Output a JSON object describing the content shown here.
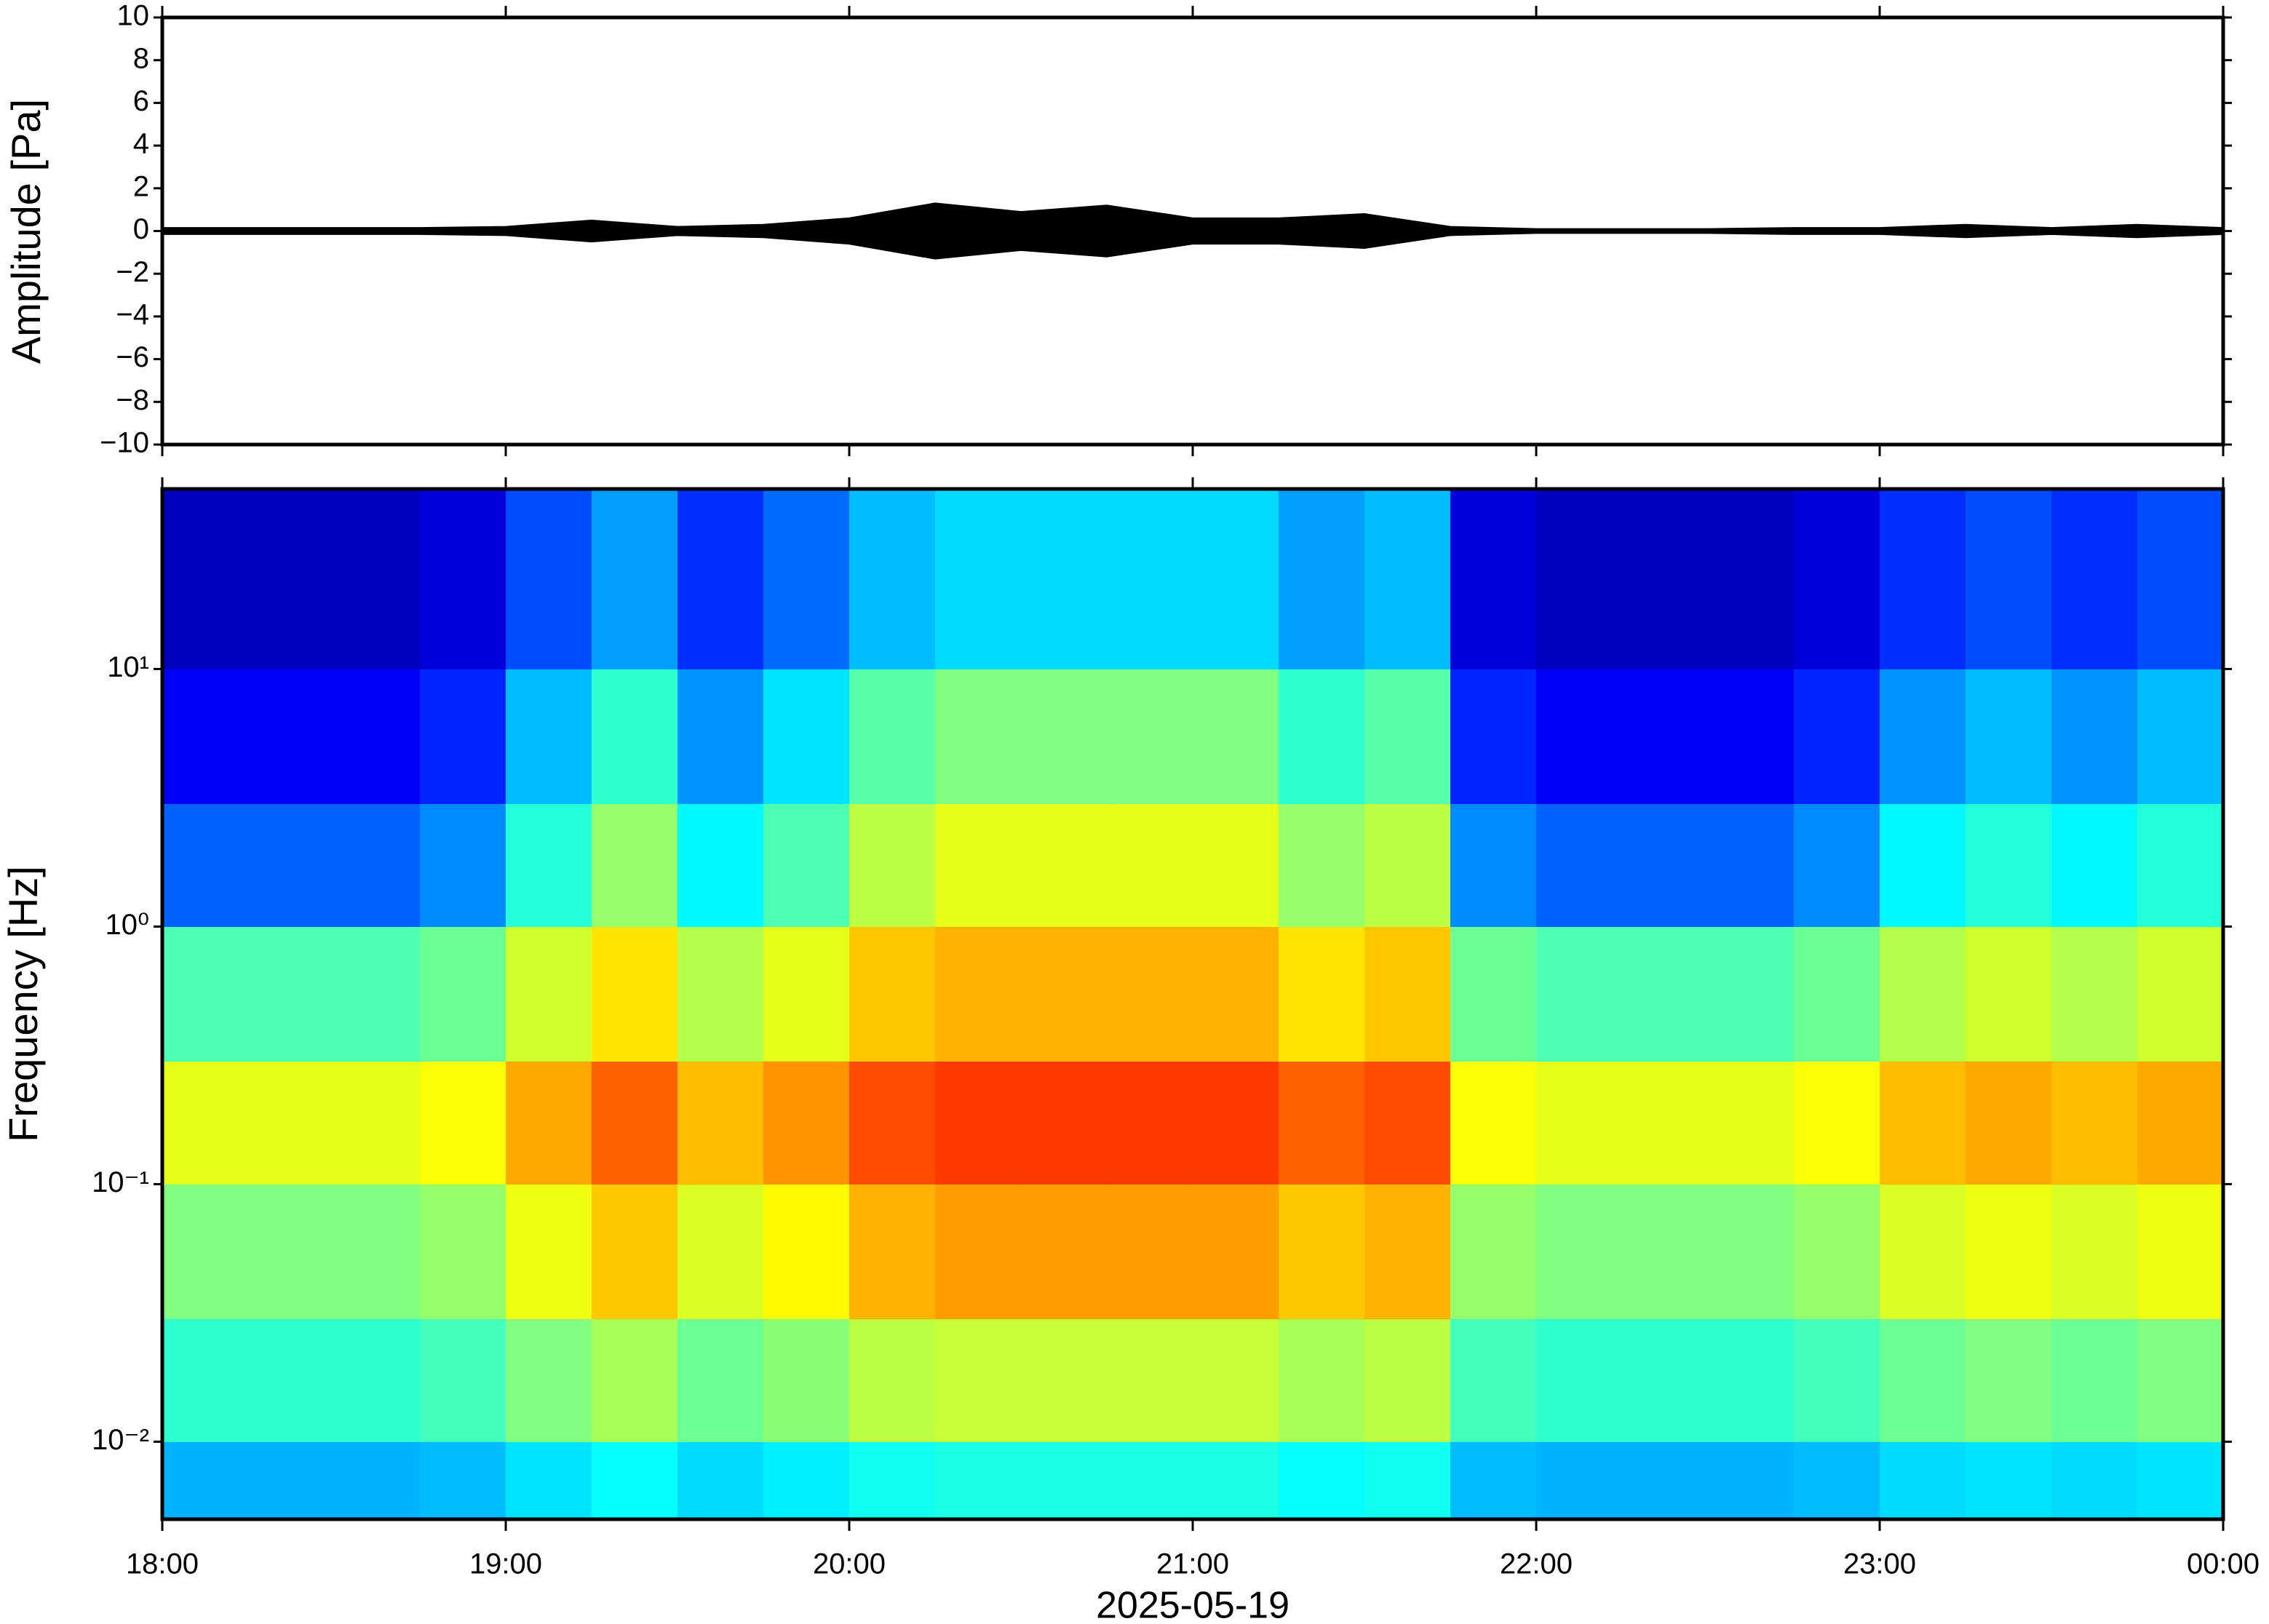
{
  "chart_data": [
    {
      "type": "waveform",
      "ylabel": "Amplitude [Pa]",
      "x": [
        18,
        18.25,
        18.5,
        18.75,
        19,
        19.25,
        19.5,
        19.75,
        20,
        20.25,
        20.5,
        20.75,
        21,
        21.25,
        21.5,
        21.75,
        22,
        22.25,
        22.5,
        22.75,
        23,
        23.25,
        23.5,
        23.75,
        24
      ],
      "values": [
        0.15,
        0.15,
        0.15,
        0.15,
        0.2,
        0.5,
        0.2,
        0.3,
        0.6,
        1.3,
        0.9,
        1.2,
        0.6,
        0.6,
        0.8,
        0.2,
        0.1,
        0.1,
        0.1,
        0.15,
        0.15,
        0.3,
        0.15,
        0.3,
        0.15
      ],
      "color": "#000000",
      "xlim": [
        18,
        24
      ],
      "ylim": [
        -10,
        10
      ],
      "yticks": [
        {
          "value": -10,
          "label": "−10"
        },
        {
          "value": -8,
          "label": "−8"
        },
        {
          "value": -6,
          "label": "−6"
        },
        {
          "value": -4,
          "label": "−4"
        },
        {
          "value": -2,
          "label": "−2"
        },
        0,
        2,
        4,
        6,
        8,
        10
      ]
    },
    {
      "type": "spectrogram",
      "ylabel": "Frequency [Hz]",
      "xlabel": "2025-05-19",
      "colormap": "jet",
      "log_y": true,
      "xlim": [
        18,
        24
      ],
      "xticks": [
        {
          "value": 18,
          "label": "18:00"
        },
        {
          "value": 19,
          "label": "19:00"
        },
        {
          "value": 20,
          "label": "20:00"
        },
        {
          "value": 21,
          "label": "21:00"
        },
        {
          "value": 22,
          "label": "22:00"
        },
        {
          "value": 23,
          "label": "23:00"
        },
        {
          "value": 24,
          "label": "00:00"
        }
      ],
      "ylim": [
        0.005,
        50
      ],
      "yticks": [
        {
          "value": 0.01,
          "label": "10⁻²"
        },
        {
          "value": 0.1,
          "label": "10⁻¹"
        },
        {
          "value": 1,
          "label": "10⁰"
        },
        {
          "value": 10,
          "label": "10¹"
        }
      ],
      "fbins": [
        0.005,
        0.01,
        0.03,
        0.1,
        0.3,
        1,
        3,
        10,
        50
      ],
      "z": [
        [
          0.3,
          0.3,
          0.3,
          0.31,
          0.35,
          0.38,
          0.34,
          0.36,
          0.39,
          0.4,
          0.4,
          0.4,
          0.4,
          0.38,
          0.39,
          0.31,
          0.3,
          0.3,
          0.3,
          0.31,
          0.34,
          0.35,
          0.34,
          0.35
        ],
        [
          0.42,
          0.42,
          0.42,
          0.44,
          0.5,
          0.54,
          0.48,
          0.51,
          0.56,
          0.57,
          0.57,
          0.57,
          0.57,
          0.54,
          0.56,
          0.44,
          0.42,
          0.42,
          0.42,
          0.44,
          0.48,
          0.5,
          0.48,
          0.5
        ],
        [
          0.5,
          0.5,
          0.5,
          0.52,
          0.61,
          0.68,
          0.59,
          0.63,
          0.7,
          0.72,
          0.72,
          0.72,
          0.72,
          0.68,
          0.7,
          0.52,
          0.5,
          0.5,
          0.5,
          0.52,
          0.59,
          0.61,
          0.59,
          0.61
        ],
        [
          0.6,
          0.6,
          0.6,
          0.62,
          0.71,
          0.78,
          0.69,
          0.73,
          0.8,
          0.82,
          0.82,
          0.82,
          0.82,
          0.78,
          0.8,
          0.62,
          0.6,
          0.6,
          0.6,
          0.62,
          0.69,
          0.71,
          0.69,
          0.71
        ],
        [
          0.45,
          0.45,
          0.45,
          0.48,
          0.58,
          0.65,
          0.55,
          0.6,
          0.68,
          0.7,
          0.7,
          0.7,
          0.7,
          0.65,
          0.68,
          0.48,
          0.45,
          0.45,
          0.45,
          0.48,
          0.55,
          0.58,
          0.55,
          0.58
        ],
        [
          0.22,
          0.22,
          0.22,
          0.26,
          0.41,
          0.52,
          0.37,
          0.45,
          0.56,
          0.6,
          0.6,
          0.6,
          0.6,
          0.52,
          0.56,
          0.26,
          0.22,
          0.22,
          0.22,
          0.26,
          0.37,
          0.41,
          0.37,
          0.41
        ],
        [
          0.12,
          0.12,
          0.12,
          0.16,
          0.31,
          0.42,
          0.27,
          0.35,
          0.46,
          0.5,
          0.5,
          0.5,
          0.5,
          0.42,
          0.46,
          0.16,
          0.12,
          0.12,
          0.12,
          0.16,
          0.27,
          0.31,
          0.27,
          0.31
        ],
        [
          0.06,
          0.06,
          0.06,
          0.09,
          0.2,
          0.28,
          0.17,
          0.23,
          0.31,
          0.34,
          0.34,
          0.34,
          0.34,
          0.28,
          0.31,
          0.09,
          0.06,
          0.06,
          0.06,
          0.09,
          0.17,
          0.2,
          0.17,
          0.2
        ]
      ]
    }
  ]
}
